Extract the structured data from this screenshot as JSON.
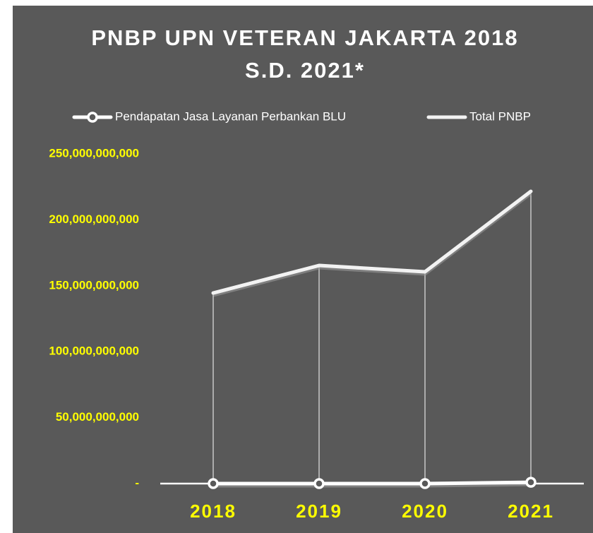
{
  "chart_data": {
    "type": "line",
    "title": "PNBP UPN VETERAN JAKARTA 2018",
    "subtitle": "S.D. 2021*",
    "categories": [
      "2018",
      "2019",
      "2020",
      "2021"
    ],
    "series": [
      {
        "name": "Pendapatan Jasa Layanan Perbankan BLU",
        "color": "#ffffff",
        "marker": "circle",
        "values": [
          0,
          0,
          0,
          1000000000
        ]
      },
      {
        "name": "Total PNBP",
        "color": "#f2f2f2",
        "marker": "none",
        "values": [
          144500000000,
          165400000000,
          160600000000,
          221600000000
        ]
      }
    ],
    "ylim": [
      0,
      250000000000
    ],
    "yticks": [
      {
        "value": 0,
        "label": "-"
      },
      {
        "value": 50000000000,
        "label": "50,000,000,000"
      },
      {
        "value": 100000000000,
        "label": "100,000,000,000"
      },
      {
        "value": 150000000000,
        "label": "150,000,000,000"
      },
      {
        "value": 200000000000,
        "label": "200,000,000,000"
      },
      {
        "value": 250000000000,
        "label": "250,000,000,000"
      }
    ],
    "legend": "top",
    "drop_lines": true
  }
}
